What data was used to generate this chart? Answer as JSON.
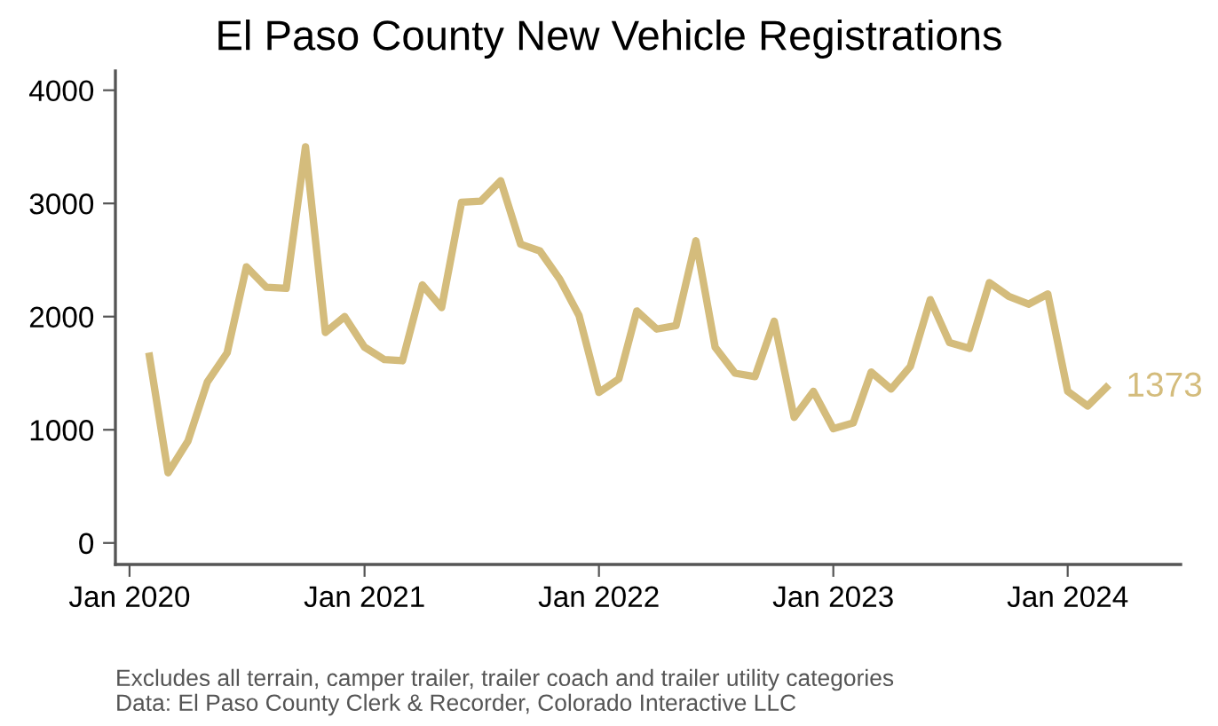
{
  "chart_data": {
    "type": "line",
    "title": "El Paso County New Vehicle Registrations",
    "x": [
      "2020-02",
      "2020-03",
      "2020-04",
      "2020-05",
      "2020-06",
      "2020-07",
      "2020-08",
      "2020-09",
      "2020-10",
      "2020-11",
      "2020-12",
      "2021-01",
      "2021-02",
      "2021-03",
      "2021-04",
      "2021-05",
      "2021-06",
      "2021-07",
      "2021-08",
      "2021-09",
      "2021-10",
      "2021-11",
      "2021-12",
      "2022-01",
      "2022-02",
      "2022-03",
      "2022-04",
      "2022-05",
      "2022-06",
      "2022-07",
      "2022-08",
      "2022-09",
      "2022-10",
      "2022-11",
      "2022-12",
      "2023-01",
      "2023-02",
      "2023-03",
      "2023-04",
      "2023-05",
      "2023-06",
      "2023-07",
      "2023-08",
      "2023-09",
      "2023-10",
      "2023-11",
      "2023-12",
      "2024-01",
      "2024-02",
      "2024-03"
    ],
    "series": [
      {
        "color": "#d4bc7c",
        "values": [
          1650,
          620,
          900,
          1420,
          1680,
          2440,
          2260,
          2250,
          3500,
          1860,
          2000,
          1730,
          1620,
          1610,
          2280,
          2080,
          3010,
          3020,
          3200,
          2640,
          2580,
          2330,
          2010,
          1330,
          1450,
          2050,
          1890,
          1920,
          2670,
          1730,
          1500,
          1470,
          1960,
          1110,
          1340,
          1010,
          1060,
          1510,
          1360,
          1560,
          2150,
          1770,
          1720,
          2300,
          2180,
          2110,
          2200,
          1340,
          1210,
          1373
        ],
        "value_labels": [
          null,
          null,
          null,
          null,
          null,
          null,
          null,
          null,
          null,
          null,
          null,
          null,
          null,
          null,
          null,
          null,
          null,
          null,
          null,
          null,
          null,
          null,
          null,
          null,
          null,
          null,
          null,
          null,
          null,
          null,
          null,
          null,
          null,
          null,
          null,
          null,
          null,
          null,
          null,
          null,
          null,
          null,
          null,
          null,
          null,
          null,
          null,
          null,
          null,
          "1373"
        ]
      }
    ],
    "xlim": [
      "2019-12-10",
      "2024-06-25"
    ],
    "xticks": [
      {
        "value": "2020-01",
        "label": "Jan 2020"
      },
      {
        "value": "2021-01",
        "label": "Jan 2021"
      },
      {
        "value": "2022-01",
        "label": "Jan 2022"
      },
      {
        "value": "2023-01",
        "label": "Jan 2023"
      },
      {
        "value": "2024-01",
        "label": "Jan 2024"
      }
    ],
    "ylim": [
      -190,
      4170
    ],
    "yticks": [
      0,
      1000,
      2000,
      3000,
      4000
    ],
    "grid": false,
    "marker": "none",
    "line_style": "solid",
    "annotations": [
      "Excludes all terrain, camper trailer, trailer coach and trailer utility categories",
      "Data: El Paso County Clerk & Recorder, Colorado Interactive LLC"
    ]
  }
}
